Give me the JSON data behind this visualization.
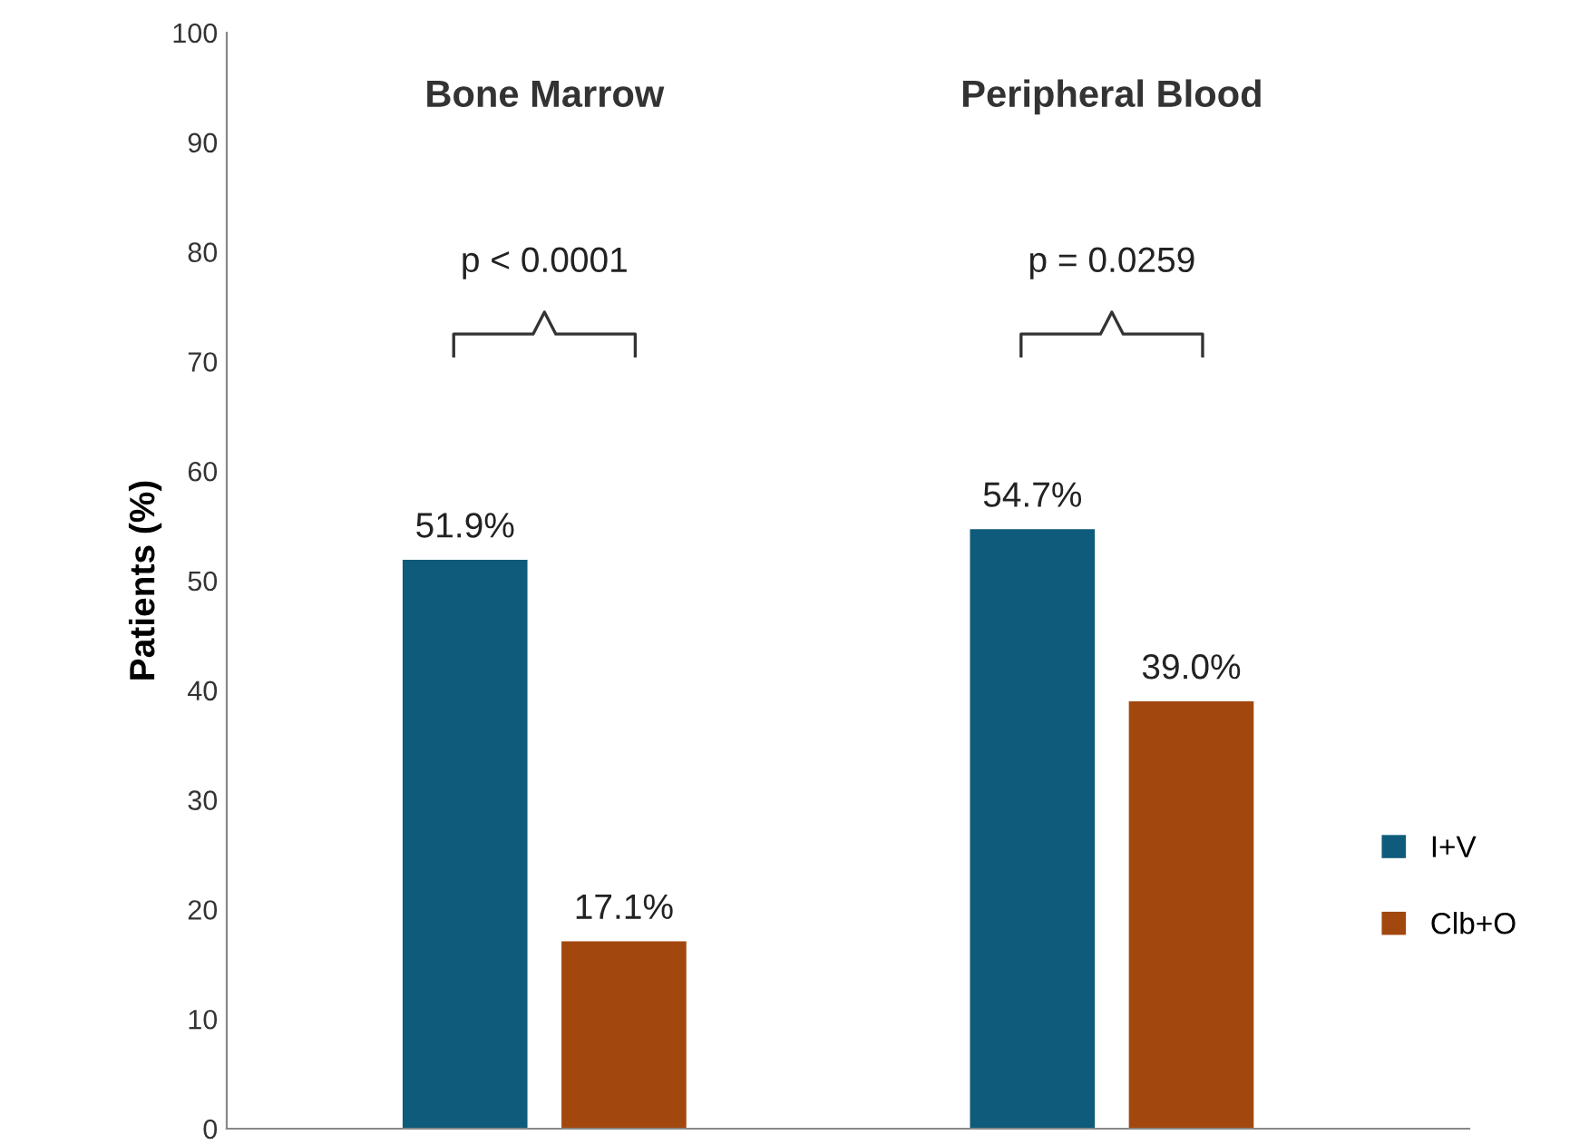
{
  "chart_data": {
    "type": "bar",
    "ylabel": "Patients (%)",
    "categories": [
      "Bone Marrow",
      "Peripheral Blood"
    ],
    "series": [
      {
        "name": "I+V",
        "color": "#0f5b7b",
        "values": [
          51.9,
          54.7
        ],
        "value_labels": [
          "51.9%",
          "54.7%"
        ]
      },
      {
        "name": "Clb+O",
        "color": "#a2470e",
        "values": [
          17.1,
          39.0
        ],
        "value_labels": [
          "17.1%",
          "39.0%"
        ]
      }
    ],
    "annotations": [
      "p < 0.0001",
      "p = 0.0259"
    ],
    "ylim": [
      0,
      100
    ],
    "yticks": [
      0,
      10,
      20,
      30,
      40,
      50,
      60,
      70,
      80,
      90,
      100
    ],
    "grid": false,
    "legend": "right"
  }
}
